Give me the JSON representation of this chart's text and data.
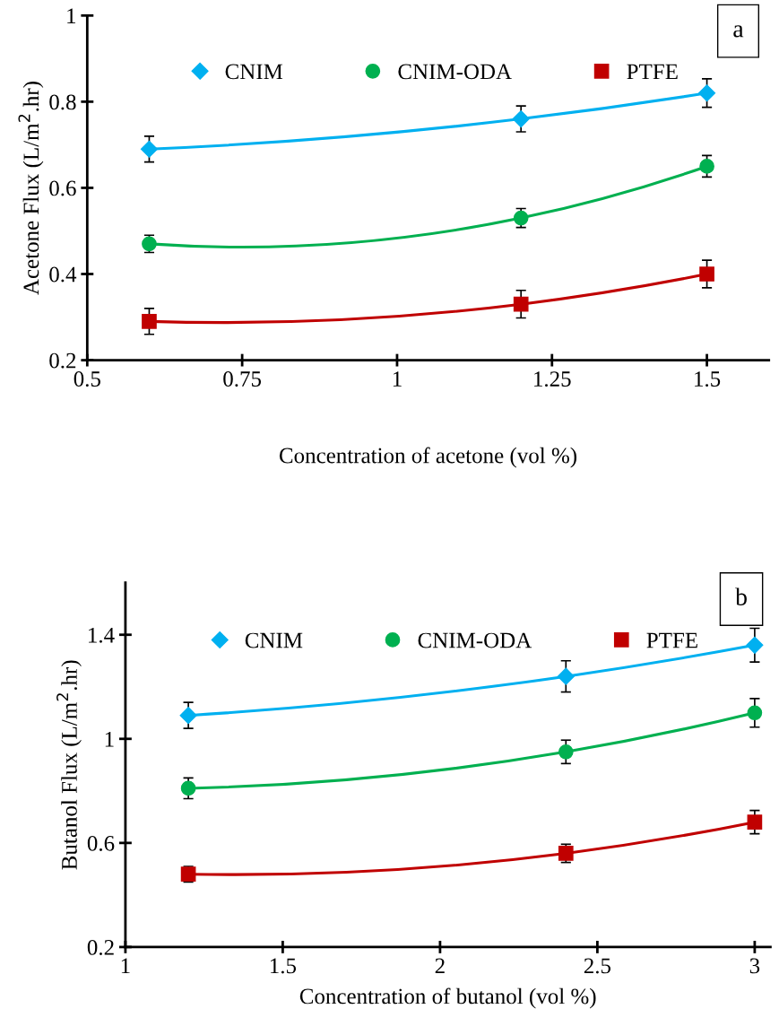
{
  "chart_data": [
    {
      "type": "line",
      "xlabel": "Concentration of acetone (vol %)",
      "ylabel": "Acetone Flux (L/m$^{2}$.hr)",
      "annotations": [
        "a"
      ],
      "x": [
        0.6,
        1.2,
        1.5
      ],
      "xlim": [
        0.5,
        1.6
      ],
      "xticks": [
        0.5,
        0.75,
        1,
        1.25,
        1.5
      ],
      "ylim": [
        0.2,
        1
      ],
      "yticks": [
        0.2,
        0.4,
        0.6,
        0.8,
        1
      ],
      "grid": false,
      "legend": "top",
      "series": [
        {
          "name": "CNIM",
          "color": "#00b0f0",
          "marker": "diamond",
          "values": [
            0.69,
            0.76,
            0.82
          ],
          "errors": [
            0.03,
            0.03,
            0.033
          ]
        },
        {
          "name": "CNIM-ODA",
          "color": "#00b050",
          "marker": "circle",
          "values": [
            0.47,
            0.53,
            0.65
          ],
          "errors": [
            0.02,
            0.022,
            0.025
          ]
        },
        {
          "name": "PTFE",
          "color": "#c00000",
          "marker": "square",
          "values": [
            0.29,
            0.33,
            0.4
          ],
          "errors": [
            0.03,
            0.032,
            0.032
          ]
        }
      ]
    },
    {
      "type": "line",
      "xlabel": "Concentration of butanol (vol %)",
      "ylabel": "Butanol Flux (L/m$^{2}$.hr)",
      "annotations": [
        "b"
      ],
      "x": [
        1.2,
        2.4,
        3
      ],
      "xlim": [
        1,
        3.05
      ],
      "xticks": [
        1,
        1.5,
        2,
        2.5,
        3
      ],
      "ylim": [
        0.2,
        1.6
      ],
      "yticks": [
        0.2,
        0.6,
        1,
        1.4
      ],
      "grid": false,
      "legend": "top",
      "series": [
        {
          "name": "CNIM",
          "color": "#00b0f0",
          "marker": "diamond",
          "values": [
            1.09,
            1.24,
            1.36
          ],
          "errors": [
            0.05,
            0.06,
            0.065
          ]
        },
        {
          "name": "CNIM-ODA",
          "color": "#00b050",
          "marker": "circle",
          "values": [
            0.81,
            0.95,
            1.1
          ],
          "errors": [
            0.04,
            0.045,
            0.055
          ]
        },
        {
          "name": "PTFE",
          "color": "#c00000",
          "marker": "square",
          "values": [
            0.48,
            0.56,
            0.68
          ],
          "errors": [
            0.03,
            0.035,
            0.045
          ]
        }
      ]
    }
  ]
}
